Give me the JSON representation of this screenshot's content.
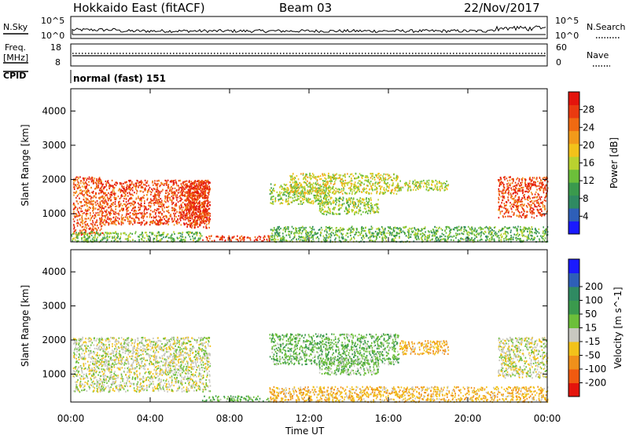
{
  "header": {
    "station": "Hokkaido East (fitACF)",
    "beam": "Beam 03",
    "date": "22/Nov/2017"
  },
  "panel_labels": {
    "nsky": "N.Sky",
    "nsky_ticks": [
      "10^5",
      "10^0"
    ],
    "nsearch": "N.Search",
    "nsearch_ticks": [
      "10^5",
      "10^0"
    ],
    "freq": "Freq.",
    "freq_unit": "[MHz]",
    "freq_ticks": [
      "18",
      "8"
    ],
    "nave": "Nave",
    "nave_ticks": [
      "60",
      "0"
    ],
    "cpid": "CPID",
    "cpid_value": "normal (fast) 151"
  },
  "chart_data": [
    {
      "type": "heatmap",
      "name": "power",
      "ylabel": "Slant Range [km]",
      "xlabel": "",
      "x_ticks": [
        "00:00",
        "04:00",
        "08:00",
        "12:00",
        "16:00",
        "20:00",
        "00:00"
      ],
      "y_ticks": [
        1000,
        2000,
        3000,
        4000
      ],
      "ylim": [
        180,
        4650
      ],
      "xlim_hours": [
        0,
        24
      ],
      "colorbar": {
        "label": "Power [dB]",
        "ticks": [
          4,
          8,
          12,
          16,
          20,
          24,
          28
        ],
        "range": [
          0,
          32
        ],
        "colors": [
          "#1a1aff",
          "#2e5fb8",
          "#2f8a62",
          "#3a9a4d",
          "#6cbf3a",
          "#b9d22f",
          "#f2c21a",
          "#f29a1a",
          "#f06a12",
          "#ea3a10",
          "#e4140c"
        ]
      },
      "regions": [
        {
          "h0": 0.1,
          "h1": 1.6,
          "r0": 400,
          "r1": 2100,
          "power": 26
        },
        {
          "h0": 1.5,
          "h1": 7.0,
          "r0": 700,
          "r1": 2000,
          "power": 27
        },
        {
          "h0": 5.5,
          "h1": 6.8,
          "r0": 900,
          "r1": 1900,
          "power": 29
        },
        {
          "h0": 5.8,
          "h1": 7.0,
          "r0": 600,
          "r1": 2000,
          "power": 28
        },
        {
          "h0": 10.0,
          "h1": 13.0,
          "r0": 1300,
          "r1": 1900,
          "power": 15
        },
        {
          "h0": 11.0,
          "h1": 16.5,
          "r0": 1600,
          "r1": 2200,
          "power": 17
        },
        {
          "h0": 12.5,
          "h1": 15.5,
          "r0": 1000,
          "r1": 1500,
          "power": 15
        },
        {
          "h0": 16.5,
          "h1": 19.0,
          "r0": 1700,
          "r1": 2000,
          "power": 16
        },
        {
          "h0": 21.5,
          "h1": 24.0,
          "r0": 900,
          "r1": 2100,
          "power": 27
        },
        {
          "h0": 6.6,
          "h1": 10.0,
          "r0": 220,
          "r1": 380,
          "power": 28
        },
        {
          "h0": 10.0,
          "h1": 24.0,
          "r0": 200,
          "r1": 650,
          "power": 12
        },
        {
          "h0": 0.0,
          "h1": 6.6,
          "r0": 200,
          "r1": 500,
          "power": 13
        }
      ]
    },
    {
      "type": "heatmap",
      "name": "velocity",
      "ylabel": "Slant Range [km]",
      "xlabel": "Time UT",
      "x_ticks": [
        "00:00",
        "04:00",
        "08:00",
        "12:00",
        "16:00",
        "20:00",
        "00:00"
      ],
      "y_ticks": [
        1000,
        2000,
        3000,
        4000
      ],
      "ylim": [
        180,
        4650
      ],
      "xlim_hours": [
        0,
        24
      ],
      "colorbar": {
        "label": "Velocity [m s^-1]",
        "ticks": [
          -200,
          -100,
          -50,
          -15,
          15,
          50,
          100,
          200
        ],
        "colors": [
          "#e4140c",
          "#f05a10",
          "#f0901a",
          "#f2c21a",
          "#c8c8c0",
          "#6cbf3a",
          "#3a9a4d",
          "#2f8a62",
          "#2e5fb8",
          "#1a1aff"
        ]
      },
      "regions": [
        {
          "h0": 0.1,
          "h1": 7.0,
          "r0": 500,
          "r1": 2100,
          "vel": 0
        },
        {
          "h0": 10.0,
          "h1": 16.5,
          "r0": 1300,
          "r1": 2200,
          "vel": 40
        },
        {
          "h0": 12.5,
          "h1": 15.5,
          "r0": 1000,
          "r1": 1500,
          "vel": 30
        },
        {
          "h0": 16.5,
          "h1": 19.0,
          "r0": 1600,
          "r1": 2000,
          "vel": -40
        },
        {
          "h0": 21.5,
          "h1": 24.0,
          "r0": 900,
          "r1": 2100,
          "vel": 0
        },
        {
          "h0": 6.6,
          "h1": 10.0,
          "r0": 220,
          "r1": 380,
          "vel": 35
        },
        {
          "h0": 10.0,
          "h1": 24.0,
          "r0": 200,
          "r1": 650,
          "vel": -40
        }
      ]
    }
  ]
}
